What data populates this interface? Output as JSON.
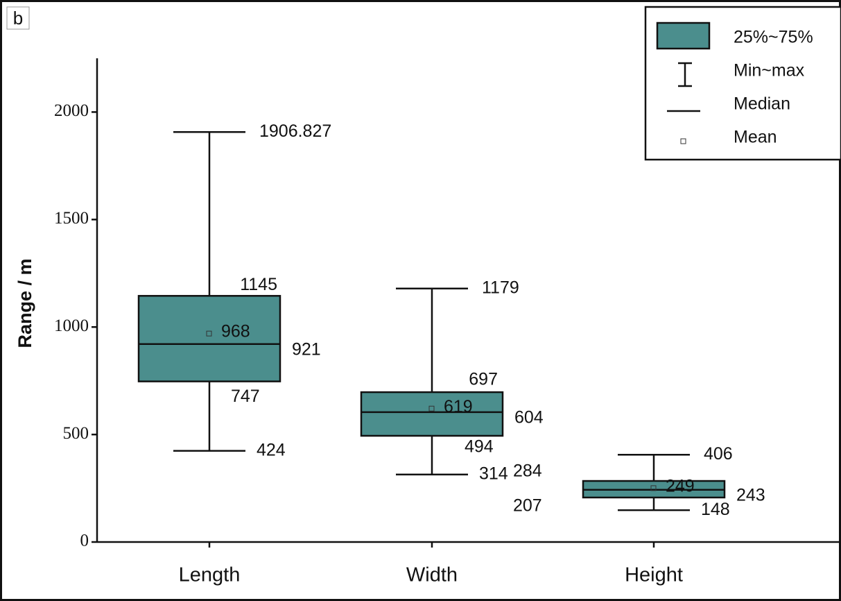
{
  "chart_data": {
    "type": "box",
    "panel_label": "b",
    "ylabel": "Range / m",
    "categories": [
      "Length",
      "Width",
      "Height"
    ],
    "boxes": [
      {
        "min": 424,
        "q1": 747,
        "median": 921,
        "q3": 1145,
        "max": 1906.827,
        "mean": 968
      },
      {
        "min": 314,
        "q1": 494,
        "median": 604,
        "q3": 697,
        "max": 1179,
        "mean": 619
      },
      {
        "min": 148,
        "q1": 207,
        "median": 243,
        "q3": 284,
        "max": 406,
        "mean": 249
      }
    ],
    "color": "#4b8e8d",
    "ylim": [
      0,
      2250
    ],
    "yticks": [
      0,
      500,
      1000,
      1500,
      2000
    ],
    "legend": {
      "position": "upper right",
      "box": "25%~75%",
      "whisker": "Min~max",
      "median": "Median",
      "mean": "Mean"
    }
  }
}
